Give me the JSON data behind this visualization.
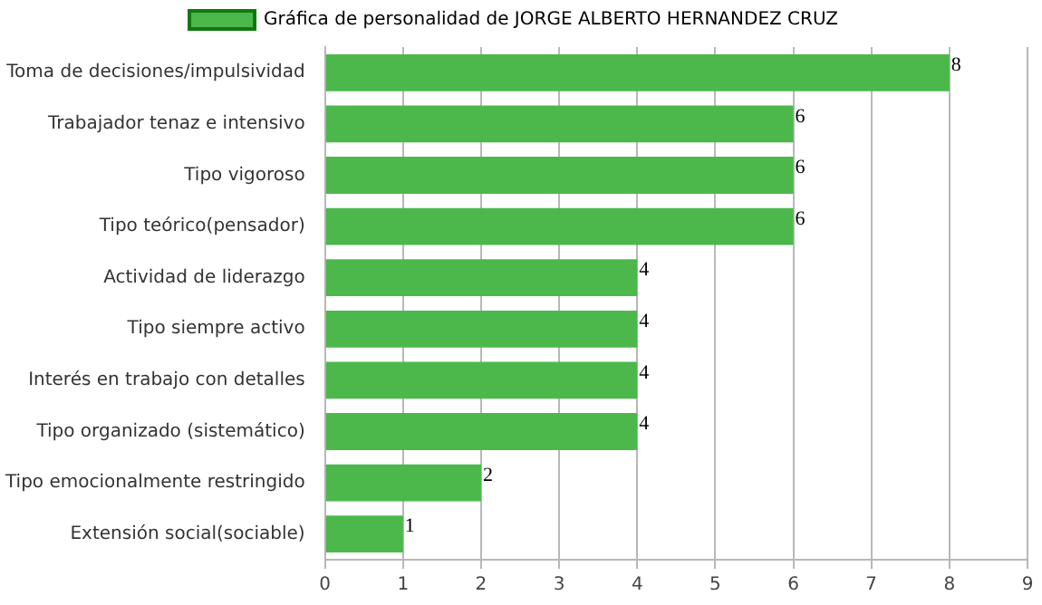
{
  "chart_data": {
    "type": "bar",
    "orientation": "horizontal",
    "categories": [
      "Toma de decisiones/impulsividad",
      "Trabajador tenaz e intensivo",
      "Tipo vigoroso",
      "Tipo teórico(pensador)",
      "Actividad de liderazgo",
      "Tipo siempre activo",
      "Interés en trabajo con detalles",
      "Tipo organizado (sistemático)",
      "Tipo emocionalmente restringido",
      "Extensión social(sociable)"
    ],
    "series": [
      {
        "name": "Gráfica de personalidad de JORGE ALBERTO HERNANDEZ CRUZ",
        "color": "#4cb84c",
        "values": [
          8,
          6,
          6,
          6,
          4,
          4,
          4,
          4,
          2,
          1
        ]
      }
    ],
    "xlim": [
      0,
      9
    ],
    "xticks": [
      0,
      1,
      2,
      3,
      4,
      5,
      6,
      7,
      8,
      9
    ],
    "grid": "x",
    "legend": "top",
    "data_labels": true
  }
}
